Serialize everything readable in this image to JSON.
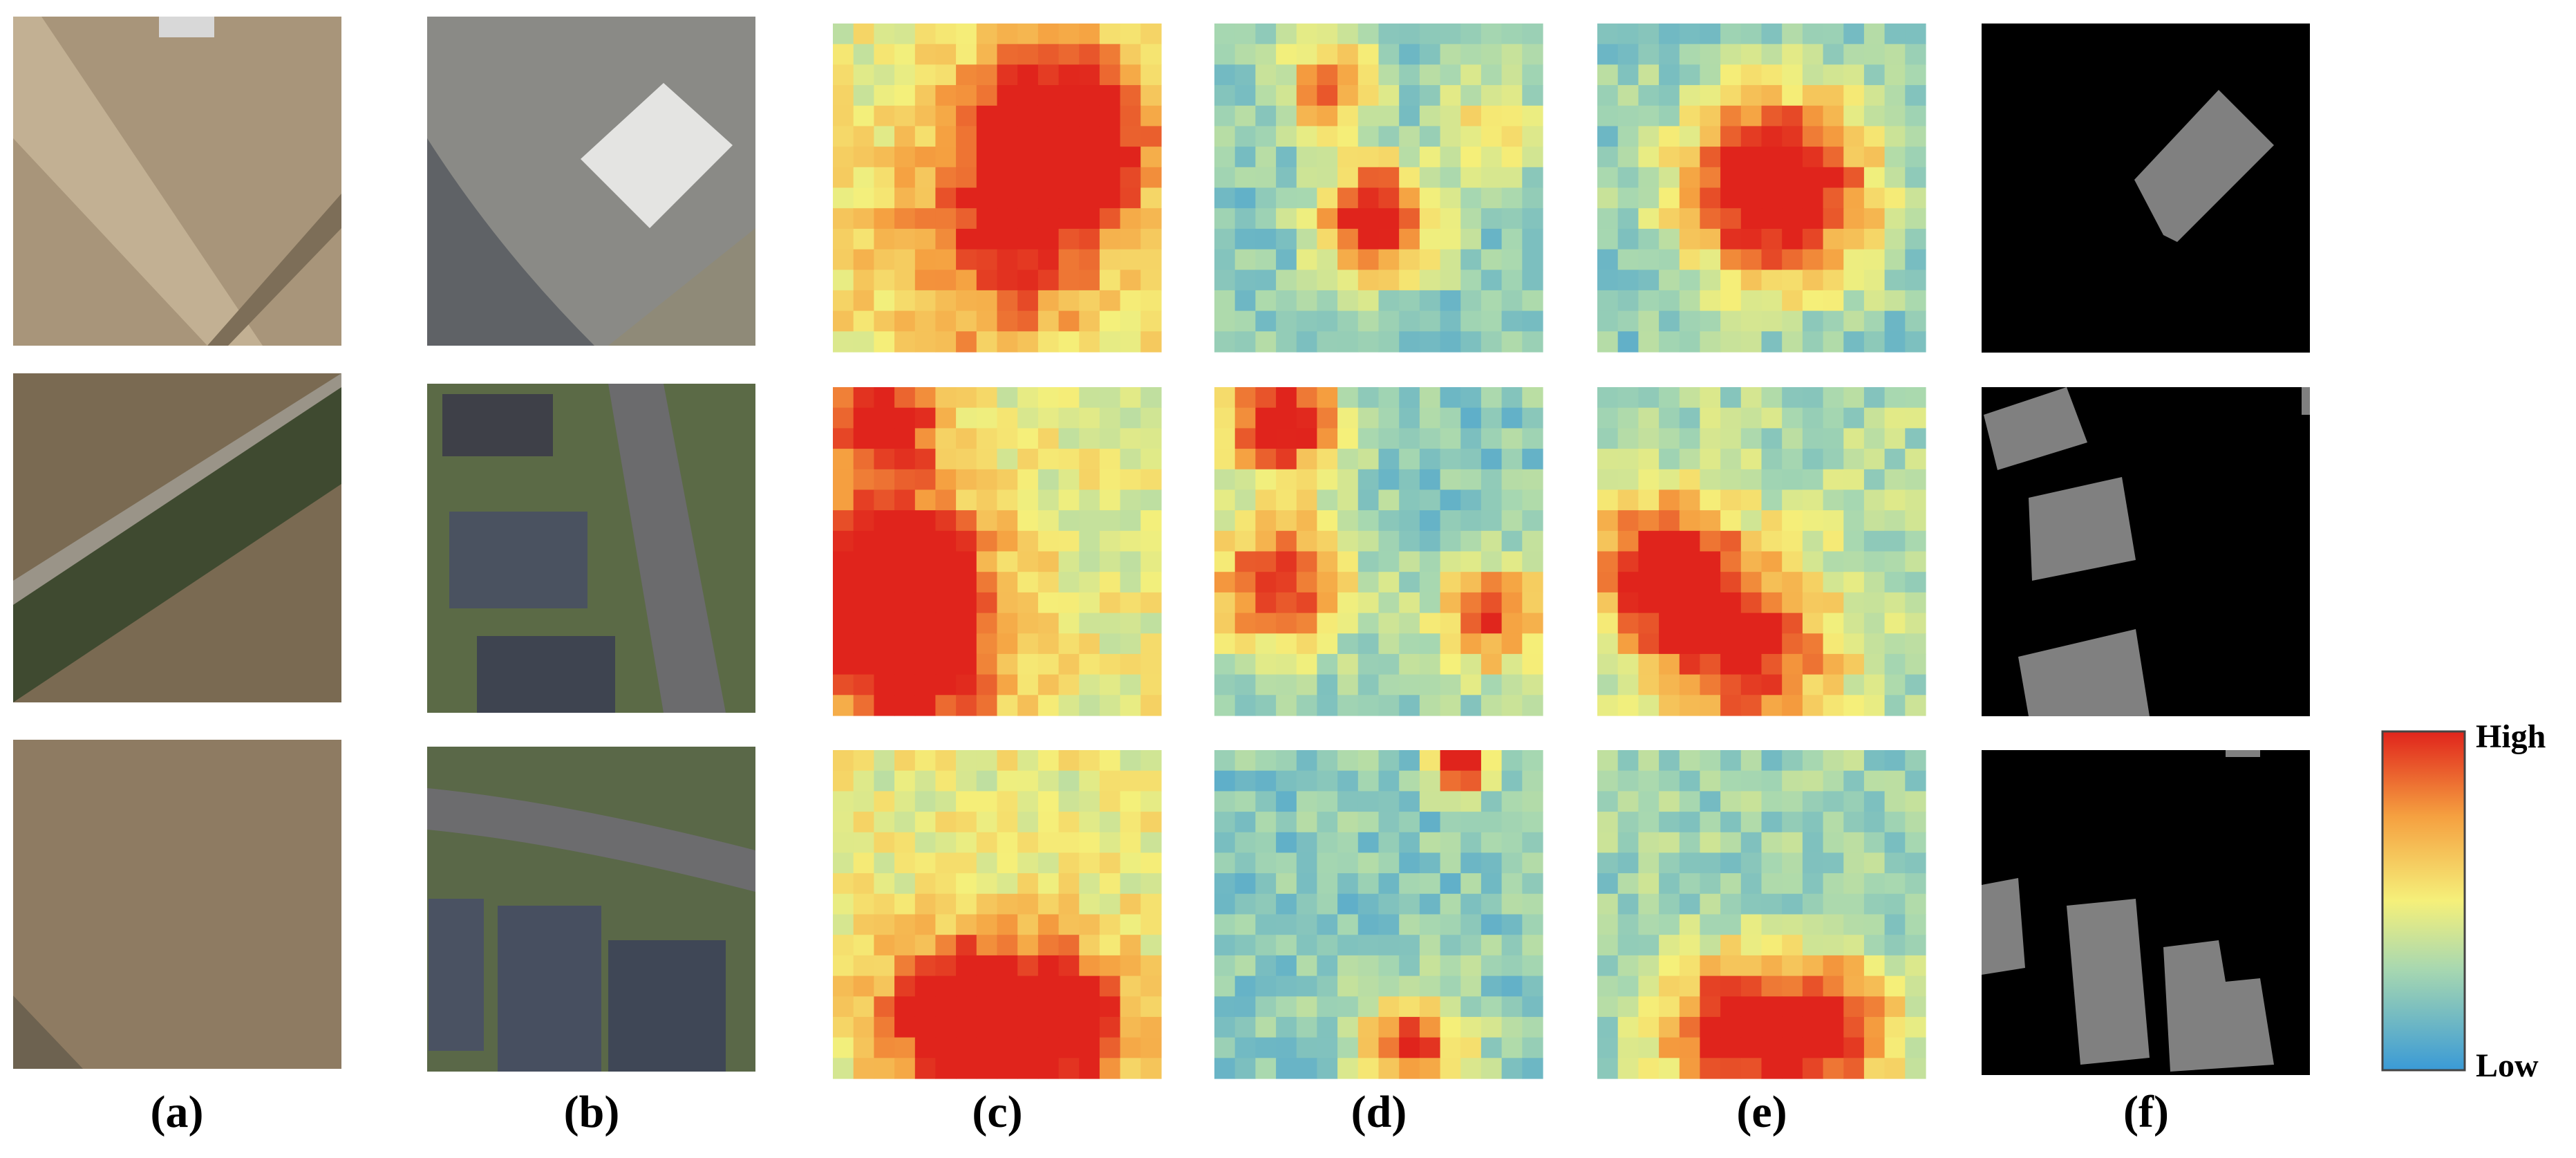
{
  "panels": {
    "labels": [
      "(a)",
      "(b)",
      "(c)",
      "(d)",
      "(e)",
      "(f)"
    ]
  },
  "colorbar": {
    "high": "High",
    "low": "Low"
  }
}
